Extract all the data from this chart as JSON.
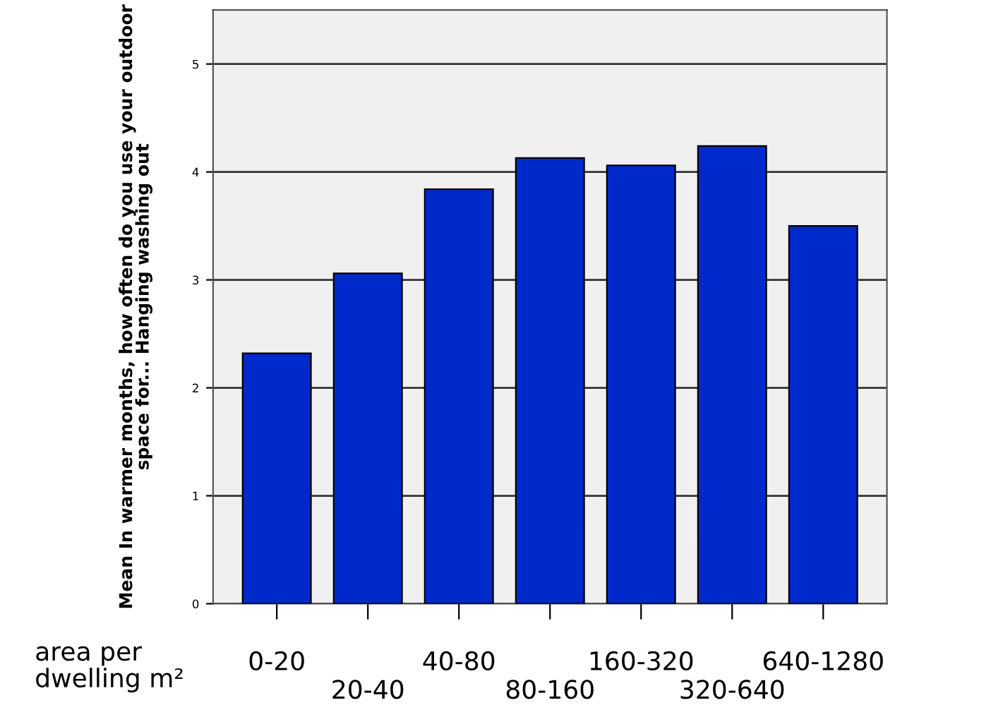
{
  "chart_data": {
    "type": "bar",
    "ylabel": "Mean In warmer months, how often do you use your outdoor space for... Hanging washing out",
    "xlabel": "area per dwelling m²",
    "categories": [
      "0-20",
      "20-40",
      "40-80",
      "80-160",
      "160-320",
      "320-640",
      "640-1280"
    ],
    "values": [
      2.32,
      3.06,
      3.84,
      4.13,
      4.06,
      4.24,
      3.5
    ],
    "color": "#0029cc",
    "ylim": [
      0,
      5.5
    ],
    "yticks": [
      0,
      1,
      2,
      3,
      4,
      5
    ],
    "grid": "y"
  }
}
